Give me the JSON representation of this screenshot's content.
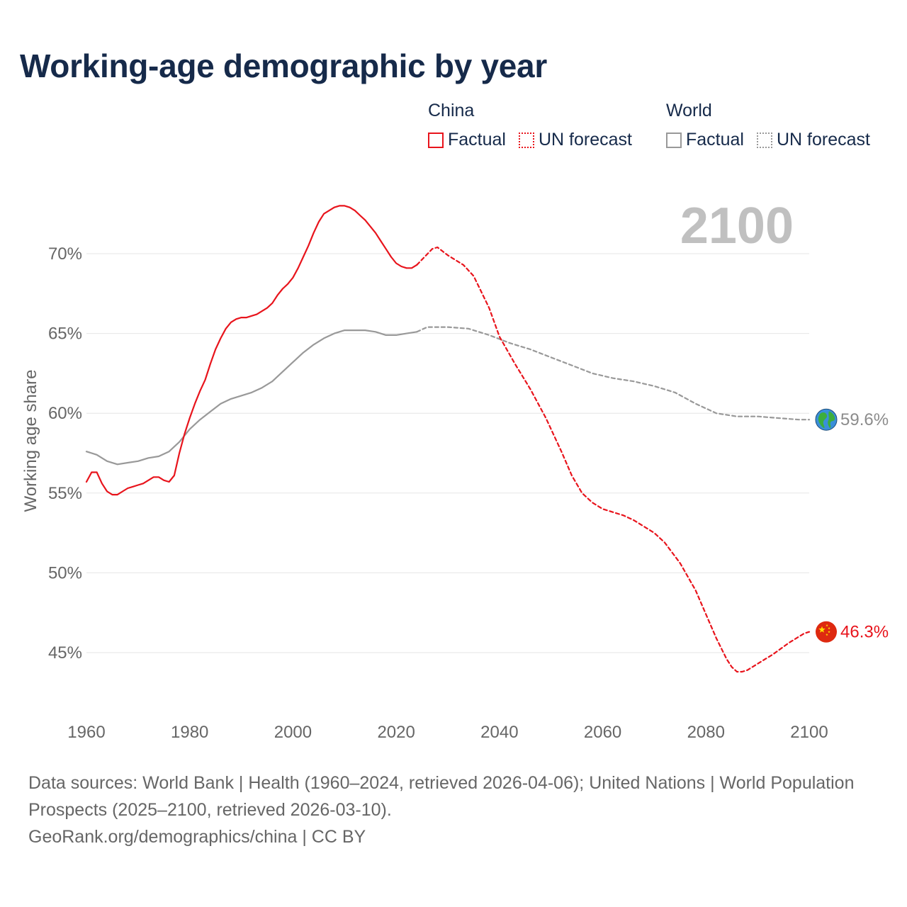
{
  "title": "Working-age demographic by year",
  "legend": {
    "groups": [
      {
        "heading": "China",
        "color": "#e8141c",
        "items": [
          {
            "label": "Factual",
            "style": "solid"
          },
          {
            "label": "UN forecast",
            "style": "dotted"
          }
        ]
      },
      {
        "heading": "World",
        "color": "#999999",
        "items": [
          {
            "label": "Factual",
            "style": "solid"
          },
          {
            "label": "UN forecast",
            "style": "dotted"
          }
        ]
      }
    ]
  },
  "chart_data": {
    "type": "line",
    "year_label": "2100",
    "ylabel": "Working age share",
    "xlim": [
      1960,
      2100
    ],
    "ylim": [
      41.5,
      74
    ],
    "x_ticks": [
      "1960",
      "1980",
      "2000",
      "2020",
      "2040",
      "2060",
      "2080",
      "2100"
    ],
    "y_ticks": [
      {
        "value": 45,
        "label": "45%"
      },
      {
        "value": 50,
        "label": "50%"
      },
      {
        "value": 55,
        "label": "55%"
      },
      {
        "value": 60,
        "label": "60%"
      },
      {
        "value": 65,
        "label": "65%"
      },
      {
        "value": 70,
        "label": "70%"
      }
    ],
    "series": [
      {
        "name": "China",
        "color": "#e8141c",
        "icon": "china-flag-icon",
        "end_label": "46.3%",
        "factual": {
          "years": [
            1960,
            1961,
            1962,
            1963,
            1964,
            1965,
            1966,
            1967,
            1968,
            1969,
            1970,
            1971,
            1972,
            1973,
            1974,
            1975,
            1976,
            1977,
            1978,
            1979,
            1980,
            1981,
            1982,
            1983,
            1984,
            1985,
            1986,
            1987,
            1988,
            1989,
            1990,
            1991,
            1992,
            1993,
            1994,
            1995,
            1996,
            1997,
            1998,
            1999,
            2000,
            2001,
            2002,
            2003,
            2004,
            2005,
            2006,
            2007,
            2008,
            2009,
            2010,
            2011,
            2012,
            2013,
            2014,
            2015,
            2016,
            2017,
            2018,
            2019,
            2020,
            2021,
            2022,
            2023,
            2024
          ],
          "values": [
            55.7,
            56.3,
            56.3,
            55.6,
            55.1,
            54.9,
            54.9,
            55.1,
            55.3,
            55.4,
            55.5,
            55.6,
            55.8,
            56.0,
            56.0,
            55.8,
            55.7,
            56.1,
            57.5,
            58.7,
            59.7,
            60.6,
            61.4,
            62.1,
            63.1,
            64.0,
            64.7,
            65.3,
            65.7,
            65.9,
            66.0,
            66.0,
            66.1,
            66.2,
            66.4,
            66.6,
            66.9,
            67.4,
            67.8,
            68.1,
            68.5,
            69.1,
            69.8,
            70.5,
            71.3,
            72.0,
            72.5,
            72.7,
            72.9,
            73.0,
            73.0,
            72.9,
            72.7,
            72.4,
            72.1,
            71.7,
            71.3,
            70.8,
            70.3,
            69.8,
            69.4,
            69.2,
            69.1,
            69.1,
            69.3
          ],
          "style": "solid"
        },
        "forecast": {
          "years": [
            2024,
            2027,
            2028,
            2030,
            2032,
            2033,
            2035,
            2038,
            2040,
            2043,
            2046,
            2049,
            2052,
            2054,
            2056,
            2058,
            2060,
            2062,
            2064,
            2066,
            2068,
            2070,
            2072,
            2075,
            2078,
            2080,
            2082,
            2084,
            2085,
            2086,
            2087,
            2088,
            2090,
            2093,
            2096,
            2099,
            2100
          ],
          "values": [
            69.3,
            70.3,
            70.4,
            69.9,
            69.5,
            69.3,
            68.6,
            66.6,
            64.8,
            63.1,
            61.5,
            59.7,
            57.6,
            56.1,
            55.0,
            54.4,
            54.0,
            53.8,
            53.6,
            53.3,
            52.9,
            52.5,
            51.9,
            50.6,
            48.9,
            47.4,
            45.9,
            44.6,
            44.1,
            43.8,
            43.8,
            43.9,
            44.3,
            44.9,
            45.6,
            46.2,
            46.3
          ],
          "style": "dotted"
        }
      },
      {
        "name": "World",
        "color": "#999999",
        "icon": "world-globe-icon",
        "end_label": "59.6%",
        "factual": {
          "years": [
            1960,
            1962,
            1964,
            1966,
            1968,
            1970,
            1972,
            1974,
            1976,
            1978,
            1980,
            1982,
            1984,
            1986,
            1988,
            1990,
            1992,
            1994,
            1996,
            1998,
            2000,
            2002,
            2004,
            2006,
            2008,
            2010,
            2012,
            2014,
            2016,
            2018,
            2020,
            2022,
            2024
          ],
          "values": [
            57.6,
            57.4,
            57.0,
            56.8,
            56.9,
            57.0,
            57.2,
            57.3,
            57.6,
            58.2,
            59.0,
            59.6,
            60.1,
            60.6,
            60.9,
            61.1,
            61.3,
            61.6,
            62.0,
            62.6,
            63.2,
            63.8,
            64.3,
            64.7,
            65.0,
            65.2,
            65.2,
            65.2,
            65.1,
            64.9,
            64.9,
            65.0,
            65.1
          ],
          "style": "solid"
        },
        "forecast": {
          "years": [
            2024,
            2026,
            2030,
            2034,
            2038,
            2042,
            2046,
            2050,
            2054,
            2058,
            2062,
            2066,
            2070,
            2074,
            2078,
            2082,
            2086,
            2090,
            2094,
            2098,
            2100
          ],
          "values": [
            65.1,
            65.4,
            65.4,
            65.3,
            64.9,
            64.4,
            64.0,
            63.5,
            63.0,
            62.5,
            62.2,
            62.0,
            61.7,
            61.3,
            60.6,
            60.0,
            59.8,
            59.8,
            59.7,
            59.6,
            59.6
          ],
          "style": "dotted"
        }
      }
    ]
  },
  "footer": {
    "sources": "Data sources: World Bank | Health (1960–2024, retrieved 2026-04-06); United Nations | World Population Prospects (2025–2100, retrieved 2026-03-10).",
    "credit": "GeoRank.org/demographics/china | CC BY"
  }
}
